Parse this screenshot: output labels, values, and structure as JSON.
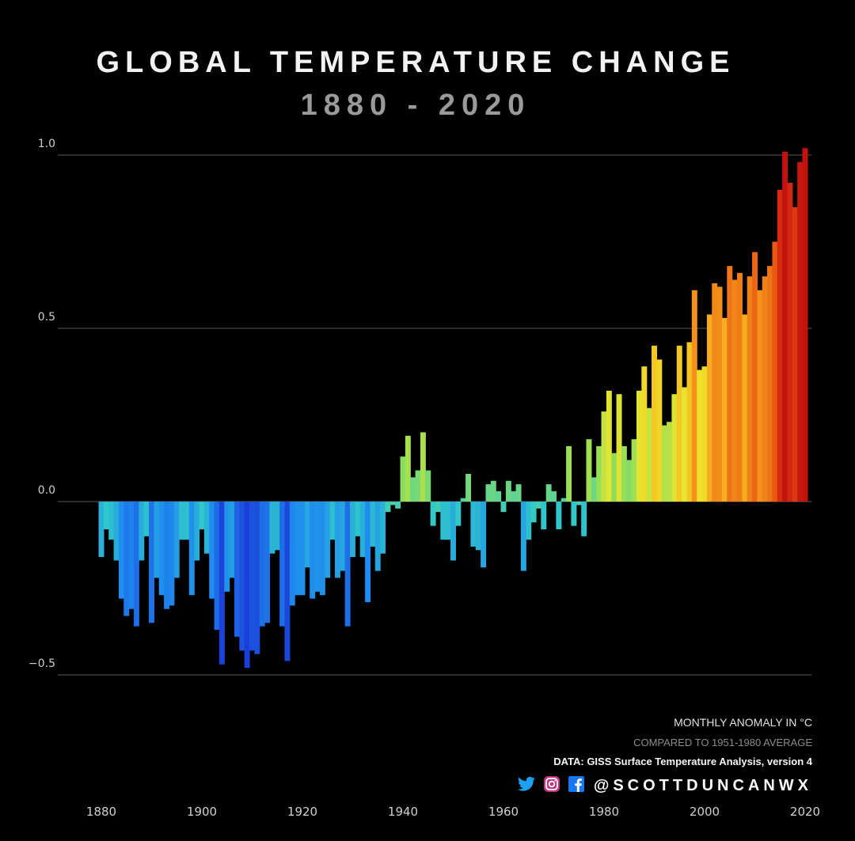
{
  "chart_data": {
    "type": "bar",
    "title": "GLOBAL TEMPERATURE CHANGE",
    "subtitle": "1880 - 2020",
    "notes": {
      "unit": "MONTHLY ANOMALY IN °C",
      "baseline": "COMPARED TO 1951-1980 AVERAGE",
      "source": "DATA: GISS Surface Temperature Analysis, version 4"
    },
    "xlabel": "",
    "ylabel": "",
    "xlim": [
      1880,
      2020
    ],
    "ylim": [
      -0.8,
      1.3
    ],
    "grid": true,
    "x_ticks": [
      {
        "value": 1880,
        "label": "1880"
      },
      {
        "value": 1900,
        "label": "1900"
      },
      {
        "value": 1920,
        "label": "1920"
      },
      {
        "value": 1940,
        "label": "1940"
      },
      {
        "value": 1960,
        "label": "1960"
      },
      {
        "value": 1980,
        "label": "1980"
      },
      {
        "value": 2000,
        "label": "2000"
      },
      {
        "value": 2020,
        "label": "2020"
      }
    ],
    "y_ticks": [
      {
        "value": 1.0,
        "label": "1.0"
      },
      {
        "value": 0.5,
        "label": "0.5"
      },
      {
        "value": 0.0,
        "label": "0.0"
      },
      {
        "value": -0.5,
        "label": "−0.5"
      }
    ],
    "color_scale": [
      "#1a37d6",
      "#1f8cf0",
      "#30c9c9",
      "#8fde5a",
      "#f1e62a",
      "#f5a11c",
      "#e84a12",
      "#c4120f"
    ],
    "series": [
      {
        "x": [
          1880,
          1881,
          1882,
          1883,
          1884,
          1885,
          1886,
          1887,
          1888,
          1889,
          1890,
          1891,
          1892,
          1893,
          1894,
          1895,
          1896,
          1897,
          1898,
          1899,
          1900,
          1901,
          1902,
          1903,
          1904,
          1905,
          1906,
          1907,
          1908,
          1909,
          1910,
          1911,
          1912,
          1913,
          1914,
          1915,
          1916,
          1917,
          1918,
          1919,
          1920,
          1921,
          1922,
          1923,
          1924,
          1925,
          1926,
          1927,
          1928,
          1929,
          1930,
          1931,
          1932,
          1933,
          1934,
          1935,
          1936,
          1937,
          1938,
          1939,
          1940,
          1941,
          1942,
          1943,
          1944,
          1945,
          1946,
          1947,
          1948,
          1949,
          1950,
          1951,
          1952,
          1953,
          1954,
          1955,
          1956,
          1957,
          1958,
          1959,
          1960,
          1961,
          1962,
          1963,
          1964,
          1965,
          1966,
          1967,
          1968,
          1969,
          1970,
          1971,
          1972,
          1973,
          1974,
          1975,
          1976,
          1977,
          1978,
          1979,
          1980,
          1981,
          1982,
          1983,
          1984,
          1985,
          1986,
          1987,
          1988,
          1989,
          1990,
          1991,
          1992,
          1993,
          1994,
          1995,
          1996,
          1997,
          1998,
          1999,
          2000,
          2001,
          2002,
          2003,
          2004,
          2005,
          2006,
          2007,
          2008,
          2009,
          2010,
          2011,
          2012,
          2013,
          2014,
          2015,
          2016,
          2017,
          2018,
          2019,
          2020
        ],
        "values": [
          -0.16,
          -0.08,
          -0.11,
          -0.17,
          -0.28,
          -0.33,
          -0.31,
          -0.36,
          -0.17,
          -0.1,
          -0.35,
          -0.22,
          -0.27,
          -0.31,
          -0.3,
          -0.22,
          -0.11,
          -0.11,
          -0.27,
          -0.17,
          -0.08,
          -0.15,
          -0.28,
          -0.37,
          -0.47,
          -0.26,
          -0.22,
          -0.39,
          -0.43,
          -0.48,
          -0.43,
          -0.44,
          -0.36,
          -0.35,
          -0.15,
          -0.14,
          -0.36,
          -0.46,
          -0.3,
          -0.27,
          -0.27,
          -0.19,
          -0.28,
          -0.26,
          -0.27,
          -0.22,
          -0.11,
          -0.22,
          -0.2,
          -0.36,
          -0.16,
          -0.1,
          -0.16,
          -0.29,
          -0.13,
          -0.2,
          -0.15,
          -0.03,
          -0.01,
          -0.02,
          0.13,
          0.19,
          0.07,
          0.09,
          0.2,
          0.09,
          -0.07,
          -0.03,
          -0.11,
          -0.11,
          -0.17,
          -0.07,
          0.01,
          0.08,
          -0.13,
          -0.14,
          -0.19,
          0.05,
          0.06,
          0.03,
          -0.03,
          0.06,
          0.03,
          0.05,
          -0.2,
          -0.11,
          -0.06,
          -0.02,
          -0.08,
          0.05,
          0.03,
          -0.08,
          0.01,
          0.16,
          -0.07,
          -0.01,
          -0.1,
          0.18,
          0.07,
          0.16,
          0.26,
          0.32,
          0.14,
          0.31,
          0.16,
          0.12,
          0.18,
          0.32,
          0.39,
          0.27,
          0.45,
          0.41,
          0.22,
          0.23,
          0.31,
          0.45,
          0.33,
          0.46,
          0.61,
          0.38,
          0.39,
          0.54,
          0.63,
          0.62,
          0.53,
          0.68,
          0.64,
          0.66,
          0.54,
          0.65,
          0.72,
          0.61,
          0.65,
          0.68,
          0.75,
          0.9,
          1.01,
          0.92,
          0.85,
          0.98,
          1.02
        ]
      }
    ]
  },
  "social": {
    "icons": [
      "twitter-icon",
      "instagram-icon",
      "facebook-icon"
    ],
    "handle": "@SCOTTDUNCANWX",
    "colors": {
      "twitter": "#1da1f2",
      "instagram": "#c13584",
      "facebook": "#1877f2"
    }
  }
}
